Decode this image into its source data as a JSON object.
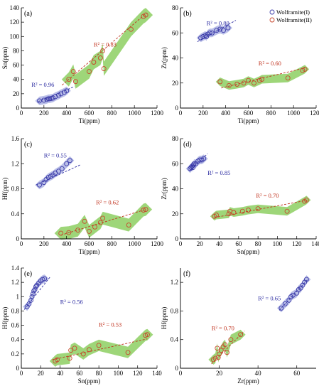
{
  "colors": {
    "wolframite_I": "#3a3aa8",
    "wolframite_II": "#c8462c",
    "field_I": "#b3b8e6",
    "field_II": "#93d26a",
    "r2_I": "#2a2aa0",
    "r2_II": "#c0301c"
  },
  "legend": {
    "items": [
      "Wolframite(I)",
      "Wolframite(II)"
    ],
    "placement": "top-right of panel (b)"
  },
  "chart_data": [
    {
      "type": "scatter",
      "panel": "(a)",
      "xlabel": "Ti(ppm)",
      "ylabel": "Sn(ppm)",
      "xlim": [
        0,
        1200
      ],
      "ylim": [
        0,
        140
      ],
      "xticks": [
        0,
        200,
        400,
        600,
        800,
        1000,
        1200
      ],
      "yticks": [
        0,
        20,
        40,
        60,
        80,
        100,
        120,
        140
      ],
      "series": [
        {
          "name": "Wolframite(I)",
          "r2": "R² = 0.96",
          "x": [
            160,
            200,
            225,
            240,
            250,
            265,
            280,
            300,
            330,
            350,
            380,
            400
          ],
          "y": [
            10,
            11,
            12,
            13,
            13,
            13.5,
            14,
            16,
            18,
            20,
            22,
            24
          ],
          "trend": [
            [
              150,
              9
            ],
            [
              470,
              30
            ]
          ]
        },
        {
          "name": "Wolframite(II)",
          "r2": "R² = 0.83",
          "x": [
            420,
            460,
            480,
            600,
            640,
            700,
            720,
            730,
            970,
            1080,
            1100
          ],
          "y": [
            40,
            51,
            37,
            51,
            64,
            70,
            80,
            55,
            110,
            128,
            130
          ],
          "trend": [
            [
              360,
              32
            ],
            [
              1110,
              133
            ]
          ]
        }
      ]
    },
    {
      "type": "scatter",
      "panel": "(b)",
      "xlabel": "Ti(ppm)",
      "ylabel": "Zr(ppm)",
      "xlim": [
        0,
        1200
      ],
      "ylim": [
        0,
        80
      ],
      "xticks": [
        0,
        200,
        400,
        600,
        800,
        1000,
        1200
      ],
      "yticks": [
        0,
        20,
        40,
        60,
        80
      ],
      "series": [
        {
          "name": "Wolframite(I)",
          "r2": "R² = 0.80",
          "x": [
            180,
            200,
            220,
            230,
            240,
            260,
            280,
            320,
            350,
            380,
            420
          ],
          "y": [
            56,
            57,
            58,
            57,
            59,
            60,
            60,
            62,
            63,
            62,
            64
          ],
          "trend": [
            [
              150,
              53
            ],
            [
              490,
              70
            ]
          ]
        },
        {
          "name": "Wolframite(II)",
          "r2": "R² = 0.60",
          "x": [
            350,
            430,
            500,
            560,
            600,
            650,
            700,
            720,
            950,
            1080,
            1100
          ],
          "y": [
            21,
            18,
            19,
            20,
            22,
            20,
            22,
            23,
            24,
            30,
            31
          ],
          "trend": [
            [
              360,
              16
            ],
            [
              1100,
              32
            ]
          ]
        }
      ]
    },
    {
      "type": "scatter",
      "panel": "(c)",
      "xlabel": "Ti(ppm)",
      "ylabel": "Hf(ppm)",
      "xlim": [
        0,
        1200
      ],
      "ylim": [
        0,
        1.6
      ],
      "xticks": [
        0,
        200,
        400,
        600,
        800,
        1000,
        1200
      ],
      "yticks": [
        0,
        0.4,
        0.8,
        1.2,
        1.6
      ],
      "series": [
        {
          "name": "Wolframite(I)",
          "r2": "R² = 0.55",
          "x": [
            160,
            200,
            220,
            240,
            260,
            280,
            300,
            330,
            360,
            400,
            430
          ],
          "y": [
            0.86,
            0.9,
            0.95,
            0.98,
            1.0,
            1.02,
            1.05,
            1.08,
            1.12,
            1.2,
            1.25
          ],
          "trend": [
            [
              130,
              0.86
            ],
            [
              520,
              1.18
            ]
          ]
        },
        {
          "name": "Wolframite(II)",
          "r2": "R² = 0.62",
          "x": [
            350,
            420,
            500,
            560,
            600,
            650,
            700,
            720,
            950,
            1080,
            1100
          ],
          "y": [
            0.09,
            0.1,
            0.14,
            0.28,
            0.12,
            0.19,
            0.26,
            0.33,
            0.22,
            0.46,
            0.47
          ],
          "trend": [
            [
              350,
              0.06
            ],
            [
              1100,
              0.47
            ]
          ]
        }
      ]
    },
    {
      "type": "scatter",
      "panel": "(d)",
      "xlabel": "Sn(ppm)",
      "ylabel": "Zr(ppm)",
      "xlim": [
        0,
        140
      ],
      "ylim": [
        0,
        80
      ],
      "xticks": [
        0,
        20,
        40,
        60,
        80,
        100,
        120,
        140
      ],
      "yticks": [
        0,
        20,
        40,
        60,
        80
      ],
      "series": [
        {
          "name": "Wolframite(I)",
          "r2": "R² = 0.85",
          "x": [
            10,
            11,
            12,
            13,
            13.5,
            14,
            16,
            18,
            20,
            22,
            24
          ],
          "y": [
            56,
            57,
            58,
            57,
            59,
            60,
            60,
            62,
            63,
            63,
            64
          ],
          "trend": [
            [
              9,
              54
            ],
            [
              28,
              68
            ]
          ]
        },
        {
          "name": "Wolframite(II)",
          "r2": "R² = 0.70",
          "x": [
            35,
            37,
            50,
            51,
            55,
            64,
            70,
            80,
            110,
            128,
            130
          ],
          "y": [
            18,
            19,
            20,
            22,
            21,
            22,
            23,
            24,
            22,
            30,
            31
          ],
          "trend": [
            [
              35,
              17
            ],
            [
              132,
              31
            ]
          ]
        }
      ]
    },
    {
      "type": "scatter",
      "panel": "(e)",
      "xlabel": "Sn(ppm)",
      "ylabel": "Hf(ppm)",
      "xlim": [
        0,
        140
      ],
      "ylim": [
        0,
        1.4
      ],
      "xticks": [
        0,
        20,
        40,
        60,
        80,
        100,
        120,
        140
      ],
      "yticks": [
        0,
        0.2,
        0.4,
        0.6,
        0.8,
        1.0,
        1.2,
        1.4
      ],
      "series": [
        {
          "name": "Wolframite(I)",
          "r2": "R² = 0.56",
          "x": [
            6,
            8,
            10,
            11,
            12,
            13,
            14,
            15,
            16,
            18,
            20,
            22,
            24
          ],
          "y": [
            0.86,
            0.9,
            0.95,
            1.0,
            1.04,
            1.08,
            1.1,
            1.14,
            1.16,
            1.19,
            1.22,
            1.24,
            1.25
          ],
          "trend": [
            [
              3,
              0.82
            ],
            [
              30,
              1.28
            ]
          ]
        },
        {
          "name": "Wolframite(II)",
          "r2": "R² = 0.53",
          "x": [
            35,
            37,
            50,
            51,
            55,
            64,
            70,
            80,
            110,
            128,
            130
          ],
          "y": [
            0.1,
            0.12,
            0.14,
            0.25,
            0.28,
            0.2,
            0.26,
            0.32,
            0.22,
            0.46,
            0.47
          ],
          "trend": [
            [
              32,
              0.12
            ],
            [
              130,
              0.41
            ]
          ]
        }
      ]
    },
    {
      "type": "scatter",
      "panel": "(f)",
      "xlabel": "Zr(ppm)",
      "ylabel": "Hf(ppm)",
      "xlim": [
        0,
        70
      ],
      "ylim": [
        0,
        1.4
      ],
      "xticks": [
        0,
        20,
        40,
        60
      ],
      "yticks": [
        0,
        0.4,
        0.8,
        1.2
      ],
      "series": [
        {
          "name": "Wolframite(I)",
          "r2": "R² = 0.65",
          "x": [
            52,
            54,
            56,
            57,
            58,
            60,
            61,
            62,
            63,
            64,
            65
          ],
          "y": [
            0.84,
            0.9,
            0.95,
            1.0,
            1.02,
            1.05,
            1.1,
            1.12,
            1.16,
            1.2,
            1.24
          ],
          "trend": [
            [
              51,
              0.81
            ],
            [
              66,
              1.25
            ]
          ]
        },
        {
          "name": "Wolframite(II)",
          "r2": "R² = 0.70",
          "x": [
            17,
            18,
            19,
            19.5,
            20,
            21,
            22,
            23,
            24,
            26,
            31
          ],
          "y": [
            0.12,
            0.14,
            0.28,
            0.15,
            0.2,
            0.25,
            0.3,
            0.33,
            0.22,
            0.4,
            0.47
          ],
          "trend": [
            [
              16,
              0.06
            ],
            [
              33,
              0.52
            ]
          ]
        }
      ]
    }
  ]
}
